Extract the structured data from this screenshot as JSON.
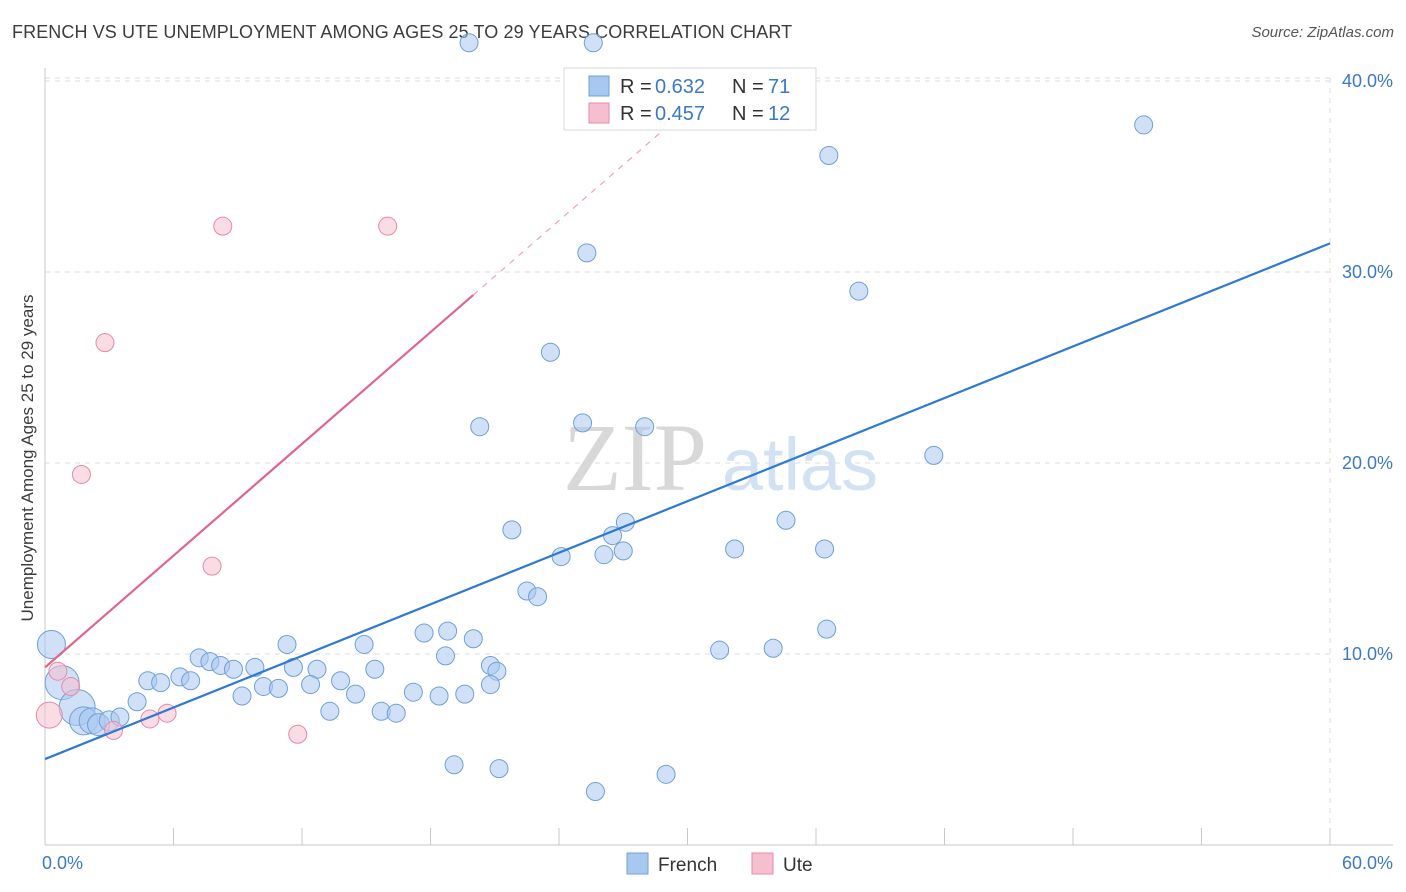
{
  "title": "FRENCH VS UTE UNEMPLOYMENT AMONG AGES 25 TO 29 YEARS CORRELATION CHART",
  "source": "Source: ZipAtlas.com",
  "watermark": {
    "zip": "ZIP",
    "atlas": "atlas"
  },
  "colors": {
    "french_fill": "#a9c8f0",
    "french_stroke": "#6f9fd8",
    "french_line": "#2f78d4",
    "ute_fill": "#f6bfd0",
    "ute_stroke": "#e58aa8",
    "ute_line": "#e0668e",
    "tick_label": "#3b78c9",
    "grid": "#dddddd"
  },
  "chart_data": {
    "type": "scatter",
    "title": "FRENCH VS UTE UNEMPLOYMENT AMONG AGES 25 TO 29 YEARS CORRELATION CHART",
    "xlabel": "",
    "ylabel": "Unemployment Among Ages 25 to 29 years",
    "xlim": [
      0,
      60
    ],
    "ylim": [
      0,
      40
    ],
    "x_tick_labels": [
      "0.0%",
      "60.0%"
    ],
    "y_ticks": [
      10,
      20,
      30,
      40
    ],
    "y_tick_labels": [
      "10.0%",
      "20.0%",
      "30.0%",
      "40.0%"
    ],
    "grid": true,
    "legend_top": [
      {
        "series": "French",
        "r_label": "R =",
        "r_value": "0.632",
        "n_label": "N =",
        "n_value": "71"
      },
      {
        "series": "Ute",
        "r_label": "R =",
        "r_value": "0.457",
        "n_label": "N =",
        "n_value": "12"
      }
    ],
    "legend_bottom": [
      "French",
      "Ute"
    ],
    "series": [
      {
        "name": "French",
        "trend": {
          "x0": 0,
          "y0": 4.5,
          "x1": 60,
          "y1": 31.5
        },
        "points": [
          [
            0.3,
            10.5,
            14
          ],
          [
            0.8,
            8.5,
            17
          ],
          [
            1.5,
            7.2,
            18
          ],
          [
            1.8,
            6.5,
            14
          ],
          [
            2.2,
            6.5,
            13
          ],
          [
            2.5,
            6.3,
            11
          ],
          [
            3.0,
            6.5,
            10
          ],
          [
            3.5,
            6.7,
            9
          ],
          [
            4.3,
            7.5,
            9
          ],
          [
            4.8,
            8.6,
            9
          ],
          [
            5.4,
            8.5,
            9
          ],
          [
            6.3,
            8.8,
            9
          ],
          [
            6.8,
            8.6,
            9
          ],
          [
            7.2,
            9.8,
            9
          ],
          [
            7.7,
            9.6,
            9
          ],
          [
            8.2,
            9.4,
            9
          ],
          [
            8.8,
            9.2,
            9
          ],
          [
            9.2,
            7.8,
            9
          ],
          [
            9.8,
            9.3,
            9
          ],
          [
            10.2,
            8.3,
            9
          ],
          [
            10.9,
            8.2,
            9
          ],
          [
            11.3,
            10.5,
            9
          ],
          [
            11.6,
            9.3,
            9
          ],
          [
            12.7,
            9.2,
            9
          ],
          [
            12.4,
            8.4,
            9
          ],
          [
            13.3,
            7.0,
            9
          ],
          [
            13.8,
            8.6,
            9
          ],
          [
            14.5,
            7.9,
            9
          ],
          [
            14.9,
            10.5,
            9
          ],
          [
            15.4,
            9.2,
            9
          ],
          [
            15.7,
            7.0,
            9
          ],
          [
            16.4,
            6.9,
            9
          ],
          [
            17.2,
            8.0,
            9
          ],
          [
            17.7,
            11.1,
            9
          ],
          [
            18.4,
            7.8,
            9
          ],
          [
            18.8,
            11.2,
            9
          ],
          [
            18.7,
            9.9,
            9
          ],
          [
            19.1,
            4.2,
            9
          ],
          [
            19.6,
            7.9,
            9
          ],
          [
            20.0,
            10.8,
            9
          ],
          [
            20.8,
            9.4,
            9
          ],
          [
            21.1,
            9.1,
            9
          ],
          [
            20.3,
            21.9,
            9
          ],
          [
            20.8,
            8.4,
            9
          ],
          [
            21.8,
            16.5,
            9
          ],
          [
            22.5,
            13.3,
            9
          ],
          [
            23.0,
            13.0,
            9
          ],
          [
            24.1,
            15.1,
            9
          ],
          [
            23.6,
            25.8,
            9
          ],
          [
            25.1,
            22.1,
            9
          ],
          [
            25.3,
            31.0,
            9
          ],
          [
            25.7,
            2.8,
            9
          ],
          [
            26.1,
            15.2,
            9
          ],
          [
            26.5,
            16.2,
            9
          ],
          [
            27.1,
            16.9,
            9
          ],
          [
            27.0,
            15.4,
            9
          ],
          [
            28.0,
            21.9,
            9
          ],
          [
            29.0,
            3.7,
            9
          ],
          [
            31.5,
            10.2,
            9
          ],
          [
            32.2,
            15.5,
            9
          ],
          [
            34.0,
            10.3,
            9
          ],
          [
            34.6,
            17.0,
            9
          ],
          [
            36.4,
            15.5,
            9
          ],
          [
            36.5,
            11.3,
            9
          ],
          [
            36.6,
            36.1,
            9
          ],
          [
            38.0,
            29.0,
            9
          ],
          [
            41.5,
            20.4,
            9
          ],
          [
            51.3,
            37.7,
            9
          ],
          [
            21.2,
            4.0,
            9
          ],
          [
            25.6,
            42.0,
            9
          ],
          [
            19.8,
            42.0,
            9
          ]
        ]
      },
      {
        "name": "Ute",
        "trend": {
          "x0": 0,
          "y0": 9.3,
          "x1": 20,
          "y1": 28.8,
          "dash_x1": 31,
          "dash_y1": 39.5
        },
        "points": [
          [
            0.2,
            6.8,
            13
          ],
          [
            0.6,
            9.1,
            9
          ],
          [
            1.2,
            8.3,
            9
          ],
          [
            1.7,
            19.4,
            9
          ],
          [
            2.8,
            26.3,
            9
          ],
          [
            4.9,
            6.6,
            9
          ],
          [
            5.7,
            6.9,
            9
          ],
          [
            7.8,
            14.6,
            9
          ],
          [
            8.3,
            32.4,
            9
          ],
          [
            11.8,
            5.8,
            9
          ],
          [
            16.0,
            32.4,
            9
          ],
          [
            3.2,
            6.0,
            9
          ]
        ]
      }
    ]
  }
}
